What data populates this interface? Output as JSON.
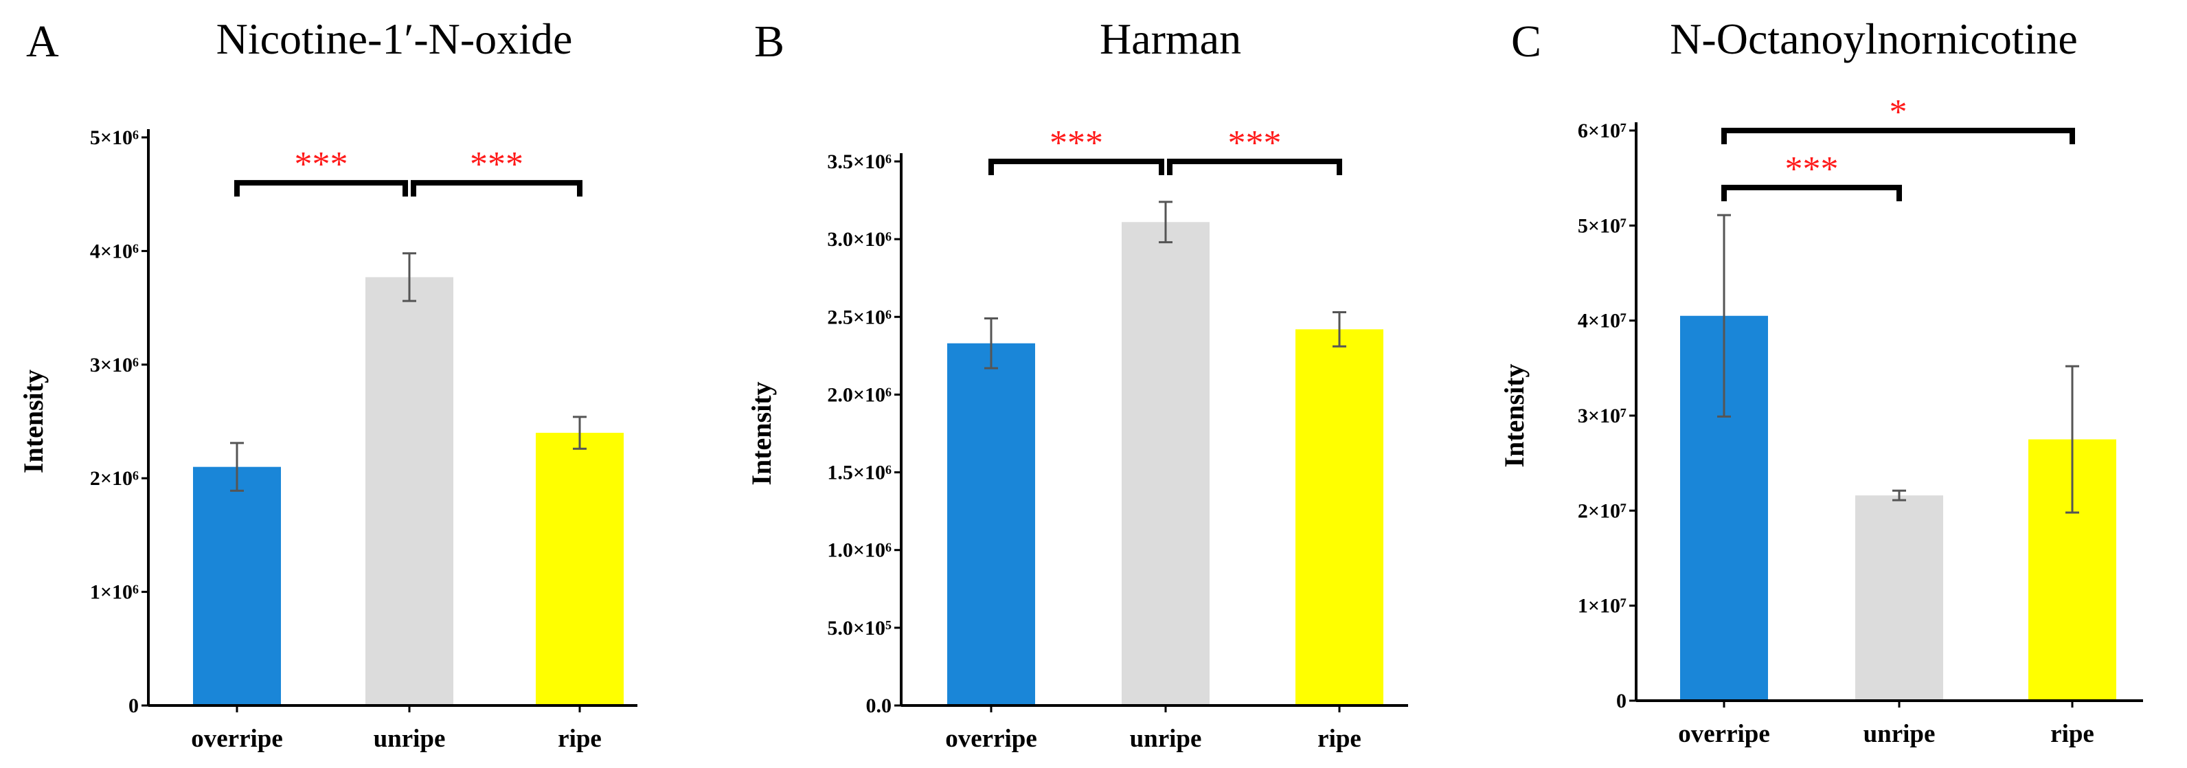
{
  "colors": {
    "overripe": "#1a86d8",
    "unripe": "#dcdcdc",
    "ripe": "#ffff00",
    "significance": "#ff1a1a",
    "axis": "#000000",
    "error_bar": "#555555"
  },
  "chart_data": [
    {
      "panel": "A",
      "type": "bar",
      "title": "Nicotine-1′-N-oxide",
      "xlabel": "",
      "ylabel": "Intensity",
      "categories": [
        "overripe",
        "unripe",
        "ripe"
      ],
      "values": [
        2100000,
        3770000,
        2400000
      ],
      "errors": [
        210000,
        210000,
        140000
      ],
      "ylim": [
        0,
        5000000
      ],
      "yticks": [
        0,
        1000000,
        2000000,
        3000000,
        4000000,
        5000000
      ],
      "ytick_labels": [
        "0",
        "1×10⁶",
        "2×10⁶",
        "3×10⁶",
        "4×10⁶",
        "5×10⁶"
      ],
      "grid": false,
      "significance": [
        {
          "from": 0,
          "to": 1,
          "label": "***",
          "y": 4600000
        },
        {
          "from": 1,
          "to": 2,
          "label": "***",
          "y": 4600000
        }
      ]
    },
    {
      "panel": "B",
      "type": "bar",
      "title": "Harman",
      "xlabel": "",
      "ylabel": "Intensity",
      "categories": [
        "overripe",
        "unripe",
        "ripe"
      ],
      "values": [
        2330000,
        3110000,
        2420000
      ],
      "errors": [
        160000,
        130000,
        110000
      ],
      "ylim": [
        0,
        3500000
      ],
      "yticks": [
        0,
        500000,
        1000000,
        1500000,
        2000000,
        2500000,
        3000000,
        3500000
      ],
      "ytick_labels": [
        "0.0",
        "5.0×10⁵",
        "1.0×10⁶",
        "1.5×10⁶",
        "2.0×10⁶",
        "2.5×10⁶",
        "3.0×10⁶",
        "3.5×10⁶"
      ],
      "grid": false,
      "significance": [
        {
          "from": 0,
          "to": 1,
          "label": "***",
          "y": 3500000
        },
        {
          "from": 1,
          "to": 2,
          "label": "***",
          "y": 3500000
        }
      ]
    },
    {
      "panel": "C",
      "type": "bar",
      "title": "N-Octanoylnornicotine",
      "xlabel": "",
      "ylabel": "Intensity",
      "categories": [
        "overripe",
        "unripe",
        "ripe"
      ],
      "values": [
        40500000,
        21600000,
        27500000
      ],
      "errors": [
        10600000,
        500000,
        7700000
      ],
      "ylim": [
        0,
        60000000
      ],
      "yticks": [
        0,
        10000000,
        20000000,
        30000000,
        40000000,
        50000000,
        60000000
      ],
      "ytick_labels": [
        "0",
        "1×10⁷",
        "2×10⁷",
        "3×10⁷",
        "4×10⁷",
        "5×10⁷",
        "6×10⁷"
      ],
      "grid": false,
      "significance": [
        {
          "from": 0,
          "to": 1,
          "label": "***",
          "y": 54000000
        },
        {
          "from": 0,
          "to": 2,
          "label": "*",
          "y": 60000000
        }
      ]
    }
  ]
}
